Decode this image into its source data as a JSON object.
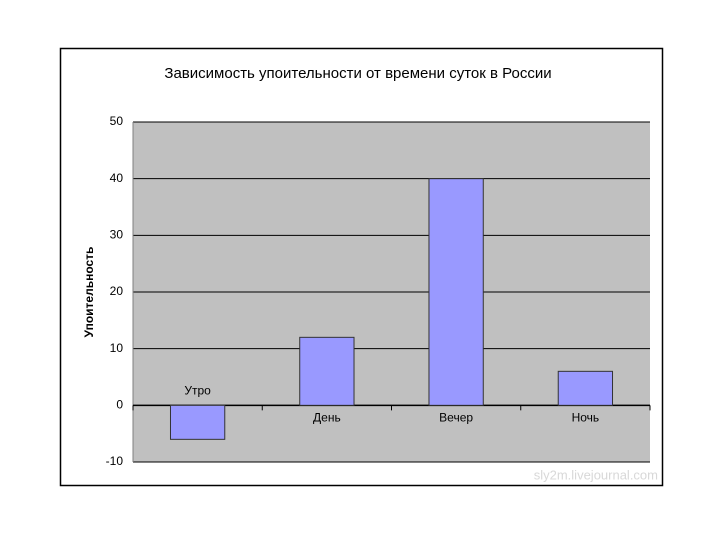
{
  "chart_data": {
    "type": "bar",
    "title": "Зависимость упоительности от времени суток в России",
    "y_label": "Упоительность",
    "categories": [
      "Утро",
      "День",
      "Вечер",
      "Ночь"
    ],
    "values": [
      -6,
      12,
      40,
      6
    ],
    "color": "#9999ff",
    "ylim": [
      -10,
      50
    ],
    "yticks": [
      -10,
      0,
      10,
      20,
      30,
      40,
      50
    ],
    "grid": true,
    "watermark": "sly2m.livejournal.com"
  }
}
